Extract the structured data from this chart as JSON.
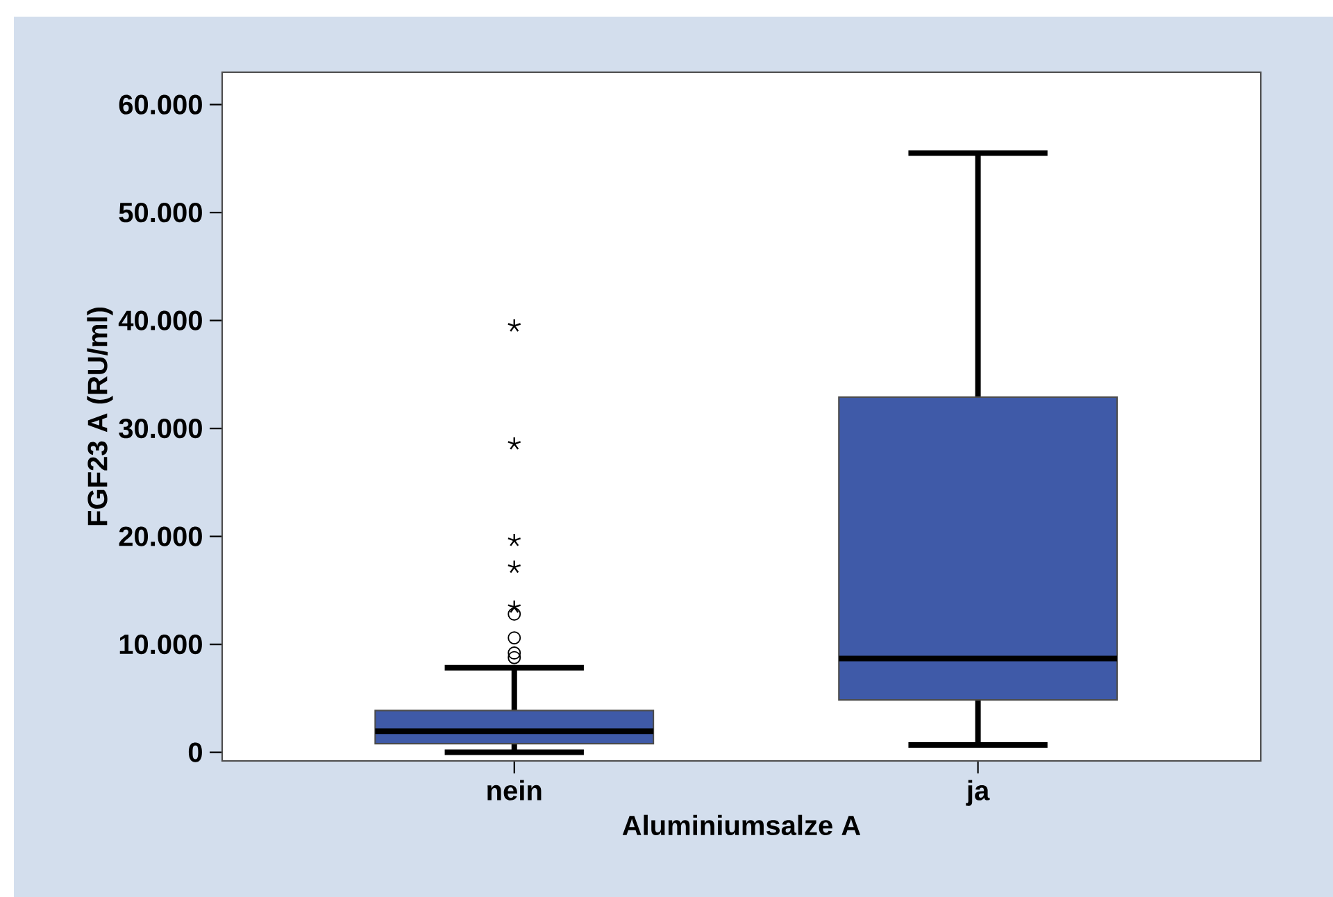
{
  "chart_data": {
    "type": "box",
    "xlabel": "Aluminiumsalze A",
    "ylabel": "FGF23 A (RU/ml)",
    "categories": [
      "nein",
      "ja"
    ],
    "color": "#3f5aa8",
    "boxes": [
      {
        "low": 0,
        "q1": 800,
        "median": 1950,
        "q3": 3870,
        "high": 7830,
        "outliers": [
          8770,
          9200,
          10600,
          12800,
          13450,
          17150,
          19630,
          28570,
          39500
        ]
      },
      {
        "low": 680,
        "q1": 4850,
        "median": 8680,
        "q3": 32900,
        "high": 55510
      }
    ],
    "ylim": [
      -800,
      63000
    ],
    "yticks": [
      0,
      {
        "value": 10000,
        "label": "10.000"
      },
      {
        "value": 20000,
        "label": "20.000"
      },
      {
        "value": 30000,
        "label": "30.000"
      },
      {
        "value": 40000,
        "label": "40.000"
      },
      {
        "value": 50000,
        "label": "50.000"
      },
      {
        "value": 60000,
        "label": "60.000"
      }
    ]
  }
}
